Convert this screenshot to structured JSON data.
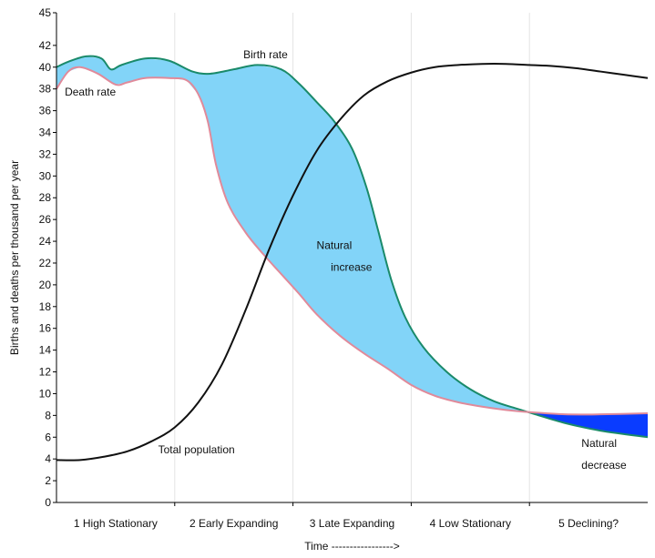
{
  "chart_data": {
    "type": "line",
    "title": "",
    "xlabel": "Time ----------------->",
    "ylabel": "Births and deaths per thousand per year",
    "ylim": [
      0,
      45
    ],
    "y_ticks": [
      0,
      2,
      4,
      6,
      8,
      10,
      12,
      14,
      16,
      18,
      20,
      22,
      24,
      26,
      28,
      30,
      32,
      34,
      36,
      38,
      40,
      42,
      45
    ],
    "x_range": [
      0,
      5
    ],
    "stages": [
      {
        "label": "1 High Stationary",
        "x": 0.5
      },
      {
        "label": "2 Early Expanding",
        "x": 1.5
      },
      {
        "label": "3 Late Expanding",
        "x": 2.5
      },
      {
        "label": "4 Low Stationary",
        "x": 3.5
      },
      {
        "label": "5 Declining?",
        "x": 4.5
      }
    ],
    "stage_boundaries": [
      1,
      2,
      3,
      4
    ],
    "grid": true,
    "series": [
      {
        "name": "Birth rate",
        "color": "#1a8a6a",
        "points": [
          [
            0,
            40
          ],
          [
            0.1,
            40.5
          ],
          [
            0.25,
            41
          ],
          [
            0.38,
            40.8
          ],
          [
            0.46,
            39.8
          ],
          [
            0.55,
            40.2
          ],
          [
            0.75,
            40.8
          ],
          [
            0.95,
            40.6
          ],
          [
            1.15,
            39.6
          ],
          [
            1.3,
            39.4
          ],
          [
            1.5,
            39.8
          ],
          [
            1.7,
            40.2
          ],
          [
            1.9,
            39.8
          ],
          [
            2.05,
            38.5
          ],
          [
            2.2,
            36.8
          ],
          [
            2.35,
            35
          ],
          [
            2.5,
            32.5
          ],
          [
            2.62,
            29
          ],
          [
            2.72,
            25
          ],
          [
            2.83,
            20.5
          ],
          [
            2.95,
            17
          ],
          [
            3.1,
            14.3
          ],
          [
            3.3,
            12
          ],
          [
            3.5,
            10.4
          ],
          [
            3.7,
            9.3
          ],
          [
            3.9,
            8.6
          ],
          [
            4.05,
            8.1
          ],
          [
            4.3,
            7.3
          ],
          [
            4.6,
            6.6
          ],
          [
            5,
            6
          ]
        ]
      },
      {
        "name": "Death rate",
        "color": "#e08a9a",
        "points": [
          [
            0,
            38
          ],
          [
            0.1,
            39.6
          ],
          [
            0.2,
            40
          ],
          [
            0.35,
            39.4
          ],
          [
            0.5,
            38.4
          ],
          [
            0.6,
            38.6
          ],
          [
            0.75,
            39
          ],
          [
            0.95,
            39
          ],
          [
            1.1,
            38.8
          ],
          [
            1.2,
            37.5
          ],
          [
            1.28,
            35
          ],
          [
            1.35,
            31
          ],
          [
            1.45,
            27.5
          ],
          [
            1.6,
            24.8
          ],
          [
            1.75,
            22.8
          ],
          [
            1.9,
            21
          ],
          [
            2.05,
            19.2
          ],
          [
            2.2,
            17.3
          ],
          [
            2.4,
            15.3
          ],
          [
            2.6,
            13.7
          ],
          [
            2.8,
            12.3
          ],
          [
            3,
            10.8
          ],
          [
            3.2,
            9.8
          ],
          [
            3.4,
            9.2
          ],
          [
            3.6,
            8.8
          ],
          [
            3.8,
            8.5
          ],
          [
            4.0,
            8.3
          ],
          [
            4.3,
            8.1
          ],
          [
            4.6,
            8.1
          ],
          [
            5,
            8.2
          ]
        ]
      },
      {
        "name": "Total population",
        "color": "#111111",
        "points": [
          [
            0,
            3.9
          ],
          [
            0.2,
            3.9
          ],
          [
            0.4,
            4.2
          ],
          [
            0.6,
            4.7
          ],
          [
            0.8,
            5.6
          ],
          [
            1,
            6.9
          ],
          [
            1.2,
            9.2
          ],
          [
            1.4,
            12.7
          ],
          [
            1.6,
            17.7
          ],
          [
            1.8,
            23.3
          ],
          [
            2,
            28.2
          ],
          [
            2.2,
            32.3
          ],
          [
            2.4,
            35.2
          ],
          [
            2.6,
            37.4
          ],
          [
            2.8,
            38.7
          ],
          [
            3,
            39.5
          ],
          [
            3.2,
            40
          ],
          [
            3.4,
            40.2
          ],
          [
            3.6,
            40.3
          ],
          [
            3.8,
            40.3
          ],
          [
            4,
            40.2
          ],
          [
            4.2,
            40.1
          ],
          [
            4.4,
            39.9
          ],
          [
            4.6,
            39.6
          ],
          [
            4.8,
            39.3
          ],
          [
            5,
            39
          ]
        ]
      }
    ],
    "fills": [
      {
        "name": "Natural increase",
        "color": "#82d4f8",
        "between": [
          "Birth rate",
          "Death rate"
        ],
        "where": "birth_above_death"
      },
      {
        "name": "Natural decrease",
        "color": "#0a3cff",
        "between": [
          "Death rate",
          "Birth rate"
        ],
        "where": "death_above_birth"
      }
    ],
    "annotations": [
      {
        "text": "Birth rate",
        "x": 1.58,
        "y": 40.8
      },
      {
        "text": "Death rate",
        "x": 0.07,
        "y": 37.4
      },
      {
        "text": "Natural",
        "x": 2.2,
        "y": 23.3
      },
      {
        "text": "increase",
        "x": 2.32,
        "y": 21.3
      },
      {
        "text": "Total population",
        "x": 0.86,
        "y": 4.5
      },
      {
        "text": "Natural",
        "x": 4.44,
        "y": 5.1
      },
      {
        "text": "decrease",
        "x": 4.44,
        "y": 3.1
      }
    ]
  }
}
